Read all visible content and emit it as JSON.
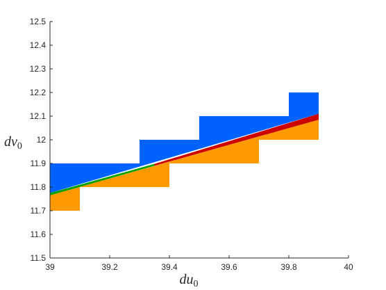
{
  "chart_data": {
    "type": "area",
    "title": "",
    "xlabel": {
      "base": "du",
      "sub": "0"
    },
    "ylabel": {
      "base": "dv",
      "sub": "0"
    },
    "xlim": [
      39,
      40
    ],
    "ylim": [
      11.5,
      12.5
    ],
    "xticks": [
      "39",
      "39.2",
      "39.4",
      "39.6",
      "39.8",
      "40"
    ],
    "yticks": [
      "11.5",
      "11.6",
      "11.7",
      "11.8",
      "11.9",
      "12",
      "12.1",
      "12.2",
      "12.3",
      "12.4",
      "12.5"
    ],
    "grid": false,
    "legend": "none",
    "series": [
      {
        "color": "#0062ff",
        "polygon": [
          [
            39,
            11.9
          ],
          [
            39.3,
            11.9
          ],
          [
            39.3,
            12.0
          ],
          [
            39.5,
            12.0
          ],
          [
            39.5,
            12.1
          ],
          [
            39.8,
            12.1
          ],
          [
            39.8,
            12.2
          ],
          [
            39.9,
            12.2
          ],
          [
            39.9,
            12.11
          ],
          [
            39,
            11.775
          ]
        ]
      },
      {
        "color": "#ff9900",
        "polygon": [
          [
            39,
            11.765
          ],
          [
            39.9,
            12.085
          ],
          [
            39.9,
            12.0
          ],
          [
            39.7,
            12.0
          ],
          [
            39.7,
            11.9
          ],
          [
            39.4,
            11.9
          ],
          [
            39.4,
            11.8
          ],
          [
            39.1,
            11.8
          ],
          [
            39.1,
            11.7
          ],
          [
            39,
            11.7
          ]
        ]
      },
      {
        "color": "#00a000",
        "polygon": [
          [
            39,
            11.775
          ],
          [
            39.35,
            11.898
          ],
          [
            39.35,
            11.89
          ],
          [
            39,
            11.765
          ]
        ]
      },
      {
        "color": "#cc0000",
        "polygon": [
          [
            39.35,
            11.898
          ],
          [
            39.9,
            12.11
          ],
          [
            39.9,
            12.085
          ],
          [
            39.35,
            11.89
          ]
        ]
      }
    ]
  }
}
